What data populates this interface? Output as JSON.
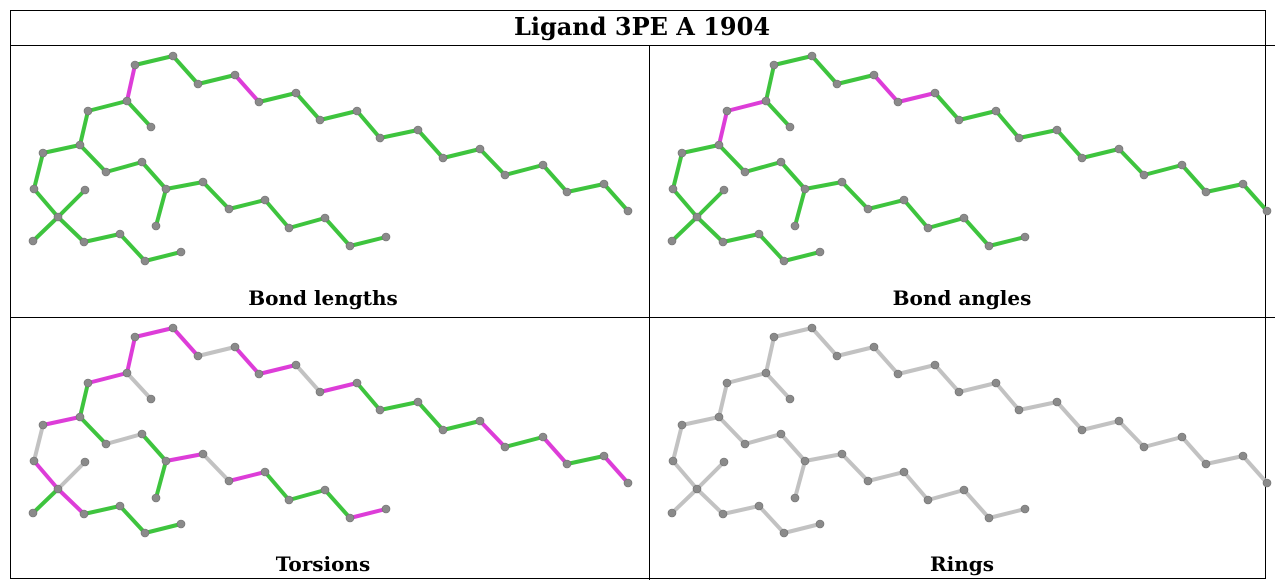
{
  "title": "Ligand 3PE A 1904",
  "panels": [
    {
      "label": "Bond lengths",
      "highlight": [
        8,
        12
      ],
      "gray": []
    },
    {
      "label": "Bond angles",
      "highlight": [
        5,
        6,
        12,
        13
      ],
      "gray": []
    },
    {
      "label": "Torsions",
      "highlight": [
        2,
        4,
        6,
        8,
        9,
        10,
        12,
        13,
        15,
        20,
        22,
        24,
        29,
        31,
        35,
        36
      ],
      "gray": [
        1,
        3,
        7,
        11,
        14,
        26,
        30
      ]
    },
    {
      "label": "Rings",
      "highlight": [],
      "gray": "all"
    }
  ],
  "colors": {
    "ok": "#3ec43e",
    "outlier": "#dd3dd8",
    "none": "#c2c2c2",
    "atom": "#8a8a8a"
  }
}
